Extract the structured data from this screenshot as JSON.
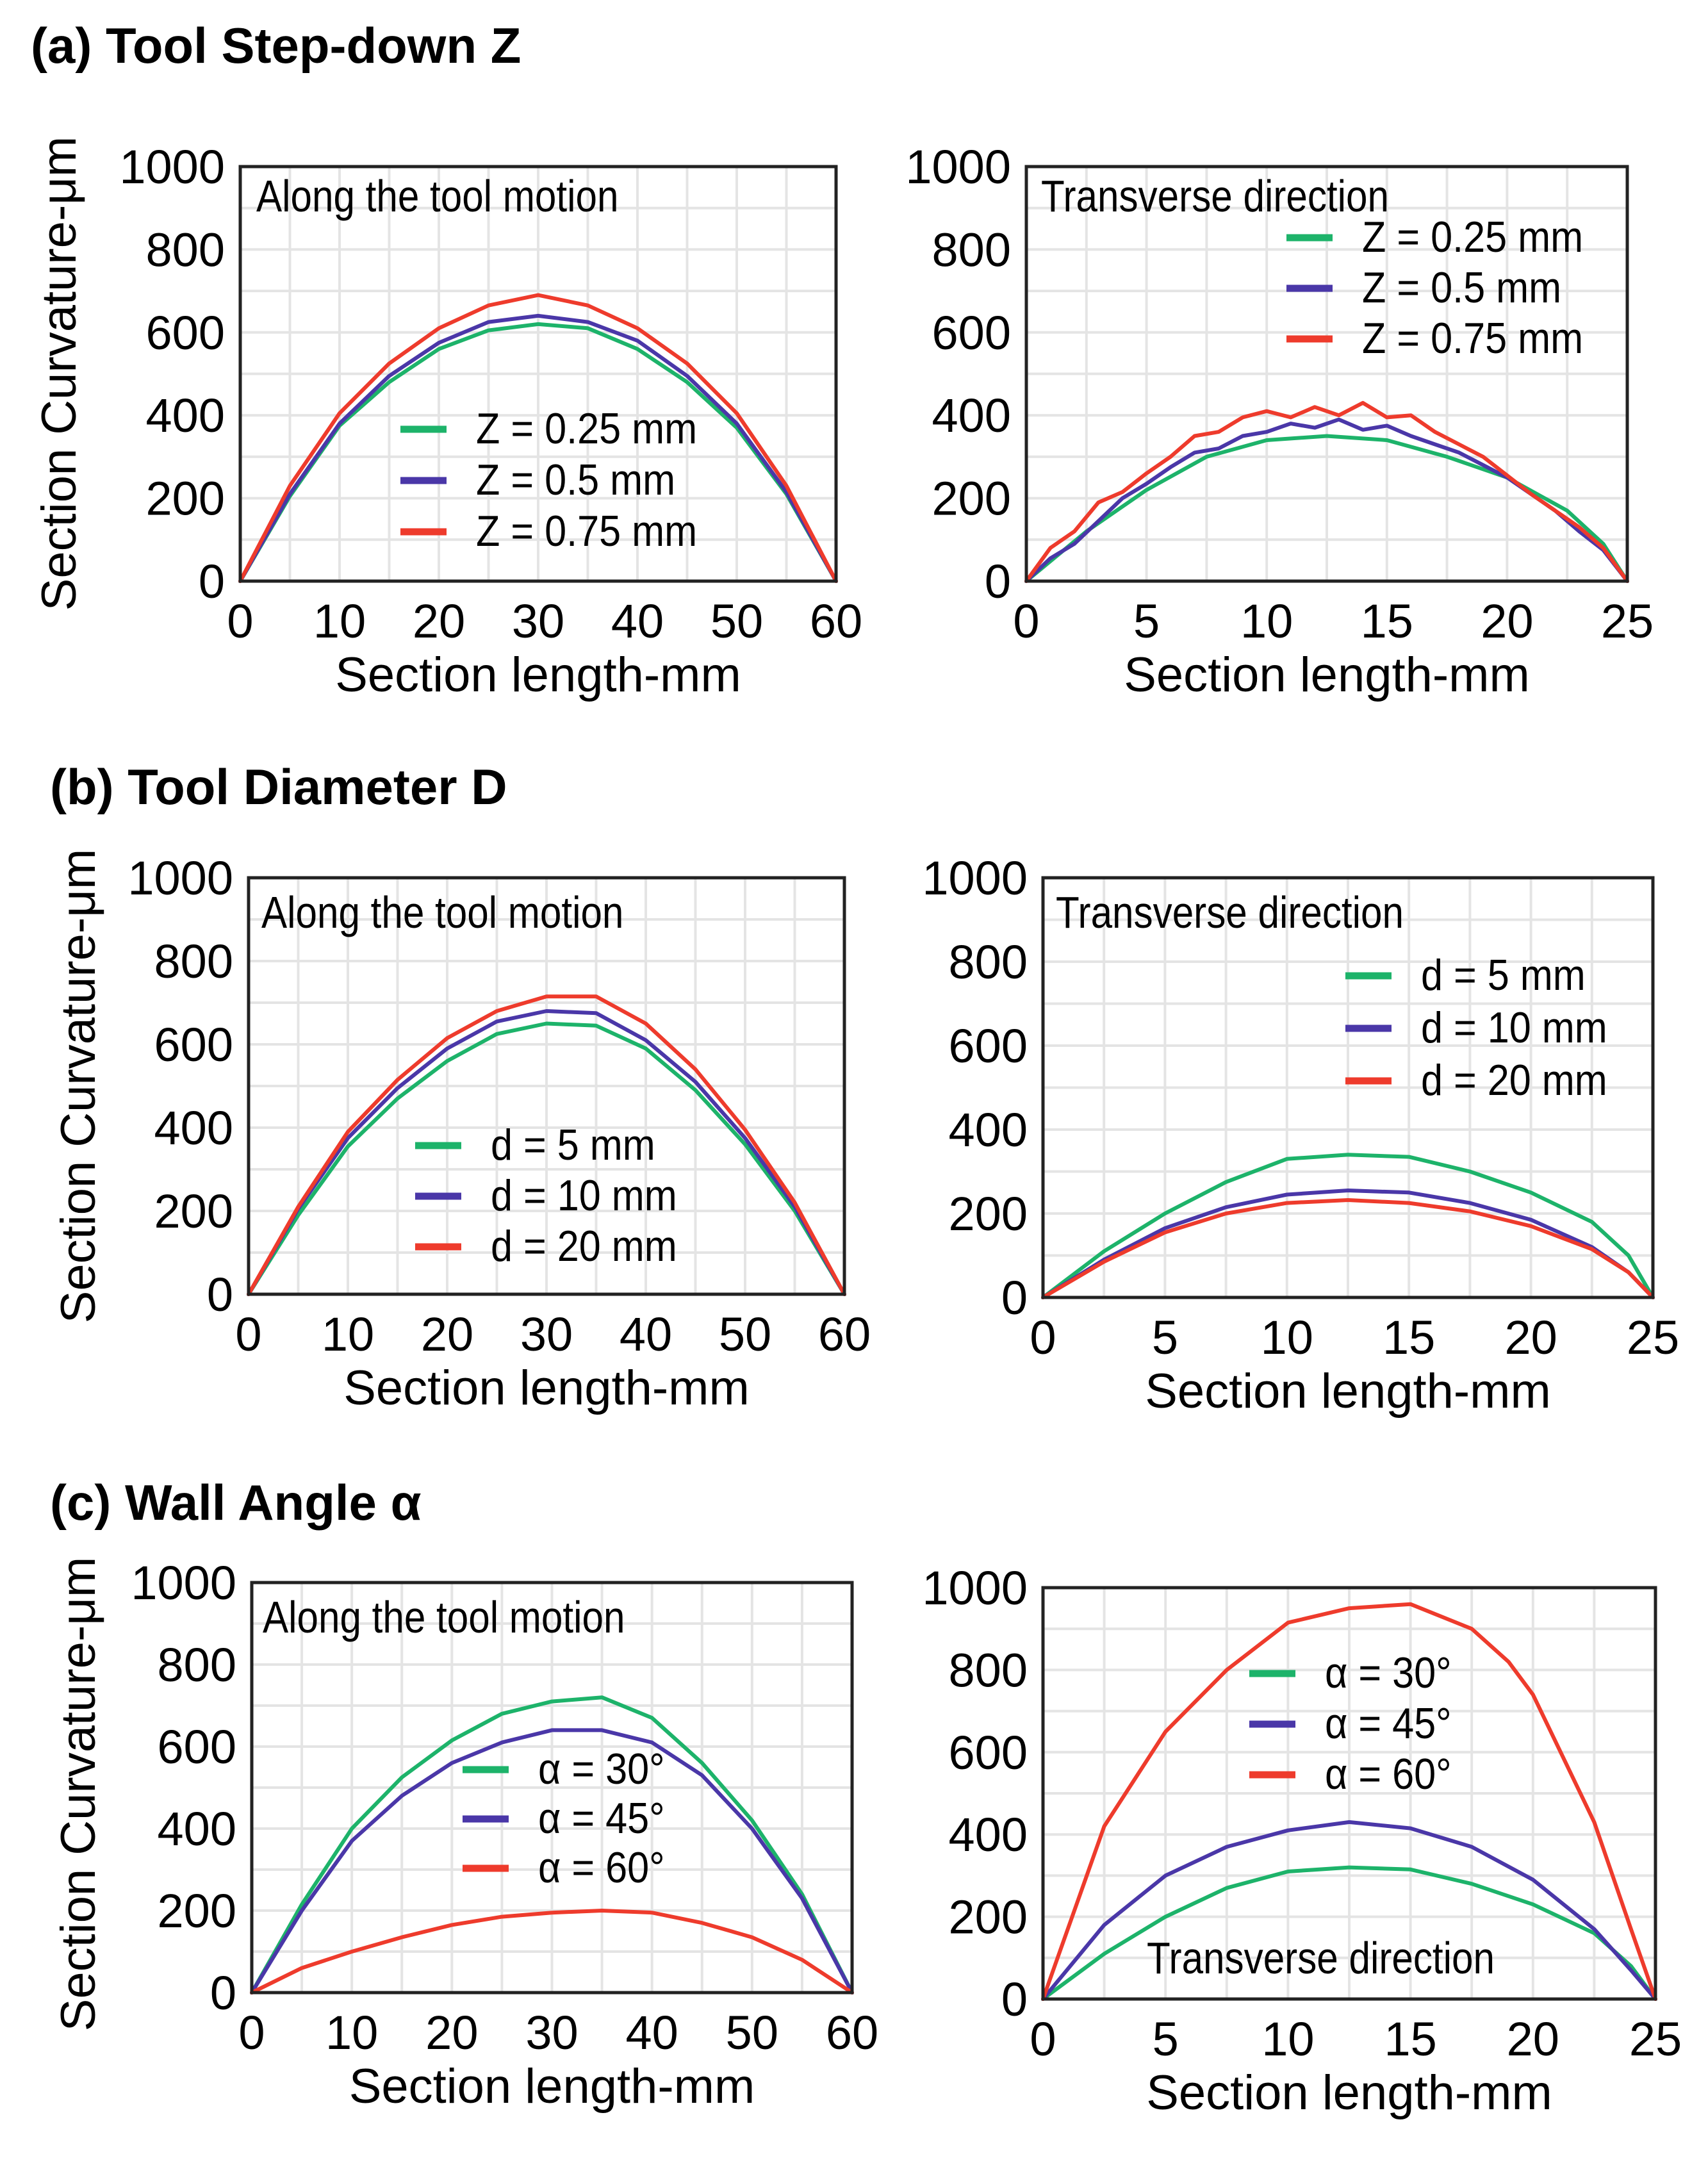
{
  "colors": {
    "green": "#1db36a",
    "blue": "#4a37a8",
    "red": "#ee3b2c"
  },
  "sections": [
    {
      "title": "(a) Tool Step-down Z"
    },
    {
      "title": "(b) Tool Diameter D"
    },
    {
      "title": "(c) Wall Angle α"
    }
  ],
  "chart_data": [
    {
      "type": "line",
      "section": 0,
      "label": "Along the tool motion",
      "xlabel": "Section length-mm",
      "ylabel": "Section Curvature-μm",
      "xlim": [
        0,
        60
      ],
      "ylim": [
        0,
        1000
      ],
      "xticks": [
        0,
        10,
        20,
        30,
        40,
        50,
        60
      ],
      "yticks": [
        0,
        200,
        400,
        600,
        800,
        1000
      ],
      "legend": "center-bottom",
      "series": [
        {
          "name": "Z = 0.25 mm",
          "color": "green",
          "x": [
            0,
            5,
            10,
            15,
            20,
            25,
            30,
            35,
            40,
            45,
            50,
            55,
            60
          ],
          "y": [
            0,
            205,
            375,
            480,
            560,
            605,
            620,
            610,
            560,
            480,
            370,
            210,
            0
          ]
        },
        {
          "name": "Z = 0.5 mm",
          "color": "blue",
          "x": [
            0,
            5,
            10,
            15,
            20,
            25,
            30,
            35,
            40,
            45,
            50,
            55,
            60
          ],
          "y": [
            0,
            210,
            380,
            495,
            575,
            625,
            640,
            625,
            580,
            495,
            380,
            215,
            0
          ]
        },
        {
          "name": "Z = 0.75 mm",
          "color": "red",
          "x": [
            0,
            5,
            10,
            15,
            20,
            25,
            30,
            35,
            40,
            45,
            50,
            55,
            60
          ],
          "y": [
            0,
            230,
            405,
            525,
            610,
            665,
            690,
            665,
            610,
            525,
            405,
            230,
            0
          ]
        }
      ]
    },
    {
      "type": "line",
      "section": 0,
      "label": "Transverse direction",
      "xlabel": "Section length-mm",
      "ylabel": "",
      "xlim": [
        0,
        25
      ],
      "ylim": [
        0,
        1000
      ],
      "xticks": [
        0,
        5,
        10,
        15,
        20,
        25
      ],
      "yticks": [
        0,
        200,
        400,
        600,
        800,
        1000
      ],
      "legend": "top-right",
      "series": [
        {
          "name": "Z = 0.25 mm",
          "color": "green",
          "x": [
            0,
            2.5,
            5,
            7.5,
            10,
            12.5,
            15,
            17.5,
            20,
            22.5,
            24,
            25
          ],
          "y": [
            0,
            120,
            220,
            300,
            340,
            350,
            340,
            300,
            250,
            170,
            90,
            0
          ]
        },
        {
          "name": "Z = 0.5 mm",
          "color": "blue",
          "x": [
            0,
            1,
            2,
            3,
            4,
            5,
            6,
            7,
            8,
            9,
            10,
            11,
            12,
            13,
            14,
            15,
            16,
            17,
            18,
            19,
            20,
            21,
            22,
            23,
            24,
            25
          ],
          "y": [
            0,
            55,
            90,
            145,
            200,
            235,
            275,
            310,
            320,
            350,
            360,
            380,
            370,
            390,
            365,
            375,
            350,
            330,
            310,
            280,
            250,
            210,
            170,
            120,
            75,
            0
          ]
        },
        {
          "name": "Z = 0.75 mm",
          "color": "red",
          "x": [
            0,
            1,
            2,
            3,
            4,
            5,
            6,
            7,
            8,
            9,
            10,
            11,
            12,
            13,
            14,
            15,
            16,
            17,
            18,
            19,
            20,
            21,
            22,
            23,
            24,
            25
          ],
          "y": [
            0,
            80,
            120,
            190,
            215,
            260,
            300,
            350,
            360,
            395,
            410,
            395,
            420,
            400,
            430,
            395,
            400,
            360,
            330,
            300,
            255,
            210,
            170,
            130,
            80,
            0
          ]
        }
      ]
    },
    {
      "type": "line",
      "section": 1,
      "label": "Along the tool motion",
      "xlabel": "Section length-mm",
      "ylabel": "Section Curvature-μm",
      "xlim": [
        0,
        60
      ],
      "ylim": [
        0,
        1000
      ],
      "xticks": [
        0,
        10,
        20,
        30,
        40,
        50,
        60
      ],
      "yticks": [
        0,
        200,
        400,
        600,
        800,
        1000
      ],
      "legend": "center-bottom",
      "series": [
        {
          "name": "d = 5 mm",
          "color": "green",
          "x": [
            0,
            5,
            10,
            15,
            20,
            25,
            30,
            35,
            40,
            45,
            50,
            55,
            60
          ],
          "y": [
            0,
            190,
            355,
            470,
            560,
            625,
            650,
            645,
            590,
            490,
            360,
            200,
            0
          ]
        },
        {
          "name": "d = 10 mm",
          "color": "blue",
          "x": [
            0,
            5,
            10,
            15,
            20,
            25,
            30,
            35,
            40,
            45,
            50,
            55,
            60
          ],
          "y": [
            0,
            205,
            375,
            495,
            590,
            655,
            680,
            675,
            610,
            510,
            375,
            210,
            0
          ]
        },
        {
          "name": "d = 20 mm",
          "color": "red",
          "x": [
            0,
            5,
            10,
            15,
            20,
            25,
            30,
            35,
            40,
            45,
            50,
            55,
            60
          ],
          "y": [
            0,
            210,
            390,
            515,
            615,
            680,
            715,
            715,
            650,
            540,
            395,
            220,
            0
          ]
        }
      ]
    },
    {
      "type": "line",
      "section": 1,
      "label": "Transverse direction",
      "xlabel": "Section length-mm",
      "ylabel": "",
      "xlim": [
        0,
        25
      ],
      "ylim": [
        0,
        1000
      ],
      "xticks": [
        0,
        5,
        10,
        15,
        20,
        25
      ],
      "yticks": [
        0,
        200,
        400,
        600,
        800,
        1000
      ],
      "legend": "top-right",
      "series": [
        {
          "name": "d = 5 mm",
          "color": "green",
          "x": [
            0,
            2.5,
            5,
            7.5,
            10,
            12.5,
            15,
            17.5,
            20,
            22.5,
            24,
            25
          ],
          "y": [
            0,
            110,
            200,
            275,
            330,
            340,
            335,
            300,
            250,
            180,
            100,
            0
          ]
        },
        {
          "name": "d = 10 mm",
          "color": "blue",
          "x": [
            0,
            2.5,
            5,
            7.5,
            10,
            12.5,
            15,
            17.5,
            20,
            22.5,
            24,
            25
          ],
          "y": [
            0,
            90,
            165,
            215,
            245,
            255,
            250,
            225,
            185,
            120,
            60,
            0
          ]
        },
        {
          "name": "d = 20 mm",
          "color": "red",
          "x": [
            0,
            2.5,
            5,
            7.5,
            10,
            12.5,
            15,
            17.5,
            20,
            22.5,
            24,
            25
          ],
          "y": [
            0,
            85,
            155,
            200,
            225,
            232,
            225,
            205,
            170,
            115,
            60,
            0
          ]
        }
      ]
    },
    {
      "type": "line",
      "section": 2,
      "label": "Along the tool motion",
      "xlabel": "Section length-mm",
      "ylabel": "Section Curvature-μm",
      "xlim": [
        0,
        60
      ],
      "ylim": [
        0,
        1000
      ],
      "xticks": [
        0,
        10,
        20,
        30,
        40,
        50,
        60
      ],
      "yticks": [
        0,
        200,
        400,
        600,
        800,
        1000
      ],
      "legend": "right-center",
      "series": [
        {
          "name": "α = 30°",
          "color": "green",
          "x": [
            0,
            5,
            10,
            15,
            20,
            25,
            30,
            35,
            40,
            45,
            50,
            55,
            60
          ],
          "y": [
            0,
            215,
            400,
            525,
            615,
            680,
            710,
            720,
            670,
            560,
            420,
            240,
            0
          ]
        },
        {
          "name": "α = 45°",
          "color": "blue",
          "x": [
            0,
            5,
            10,
            15,
            20,
            25,
            30,
            35,
            40,
            45,
            50,
            55,
            60
          ],
          "y": [
            0,
            200,
            370,
            480,
            560,
            610,
            640,
            640,
            610,
            530,
            400,
            230,
            0
          ]
        },
        {
          "name": "α = 60°",
          "color": "red",
          "x": [
            0,
            5,
            10,
            15,
            20,
            25,
            30,
            35,
            40,
            45,
            50,
            55,
            60
          ],
          "y": [
            0,
            60,
            100,
            135,
            165,
            185,
            195,
            200,
            195,
            170,
            135,
            80,
            0
          ]
        }
      ]
    },
    {
      "type": "line",
      "section": 2,
      "label": "Transverse direction",
      "xlabel": "Section length-mm",
      "ylabel": "",
      "xlim": [
        0,
        25
      ],
      "ylim": [
        0,
        1000
      ],
      "xticks": [
        0,
        5,
        10,
        15,
        20,
        25
      ],
      "yticks": [
        0,
        200,
        400,
        600,
        800,
        1000
      ],
      "legend": "top-center",
      "series": [
        {
          "name": "α = 30°",
          "color": "green",
          "x": [
            0,
            2.5,
            5,
            7.5,
            10,
            12.5,
            15,
            17.5,
            20,
            22.5,
            24,
            25
          ],
          "y": [
            0,
            110,
            200,
            270,
            310,
            320,
            315,
            280,
            230,
            160,
            80,
            0
          ]
        },
        {
          "name": "α = 45°",
          "color": "blue",
          "x": [
            0,
            2.5,
            5,
            7.5,
            10,
            12.5,
            15,
            17.5,
            20,
            22.5,
            24,
            25
          ],
          "y": [
            0,
            180,
            300,
            370,
            410,
            430,
            415,
            370,
            290,
            170,
            70,
            0
          ]
        },
        {
          "name": "α = 60°",
          "color": "red",
          "x": [
            0,
            2.5,
            5,
            7.5,
            10,
            12.5,
            15,
            17.5,
            19,
            20,
            22.5,
            24,
            25
          ],
          "y": [
            0,
            420,
            650,
            800,
            915,
            950,
            960,
            900,
            820,
            740,
            430,
            170,
            0
          ]
        }
      ]
    }
  ]
}
